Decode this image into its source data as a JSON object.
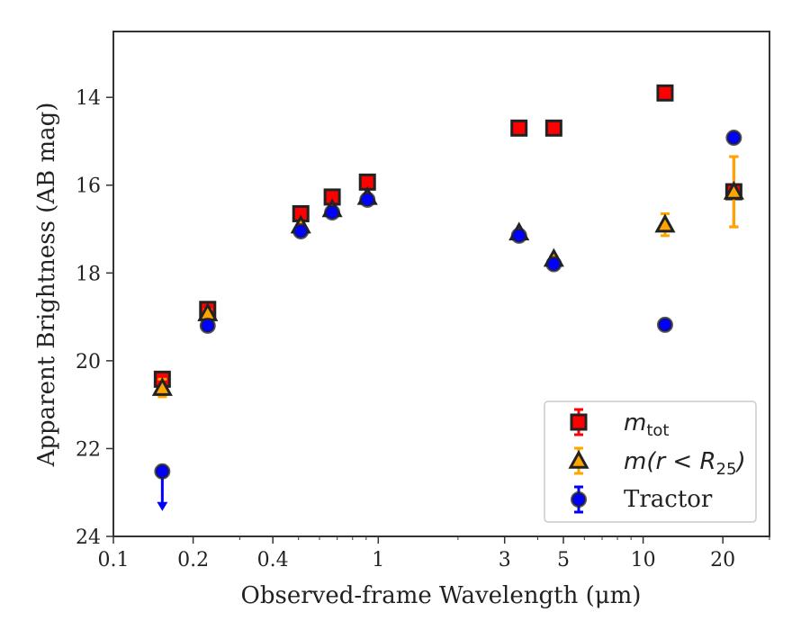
{
  "chart_data": {
    "type": "scatter",
    "title": "",
    "xlabel": "Observed-frame Wavelength (μm)",
    "ylabel": "Apparent Brightness (AB mag)",
    "xscale": "log",
    "yscale": "linear",
    "y_inverted": true,
    "xlim": [
      0.1,
      30
    ],
    "ylim": [
      24,
      12.5
    ],
    "x_ticks": [
      {
        "value": 0.1,
        "label": "0.1"
      },
      {
        "value": 0.2,
        "label": "0.2"
      },
      {
        "value": 0.4,
        "label": "0.4"
      },
      {
        "value": 1,
        "label": "1"
      },
      {
        "value": 3,
        "label": "3"
      },
      {
        "value": 5,
        "label": "5"
      },
      {
        "value": 10,
        "label": "10"
      },
      {
        "value": 20,
        "label": "20"
      }
    ],
    "y_ticks": [
      {
        "value": 14,
        "label": "14"
      },
      {
        "value": 16,
        "label": "16"
      },
      {
        "value": 18,
        "label": "18"
      },
      {
        "value": 20,
        "label": "20"
      },
      {
        "value": 22,
        "label": "22"
      },
      {
        "value": 24,
        "label": "24"
      }
    ],
    "grid": false,
    "legend_position": "bottom-right",
    "series": [
      {
        "name_main": "m",
        "name_sub": "tot",
        "marker": "square",
        "color": "#ff0000",
        "edge_color": "#222222",
        "errorbar_color": "#ff0000",
        "points": [
          {
            "x": 0.153,
            "y": 20.42,
            "yerr": 0.08
          },
          {
            "x": 0.227,
            "y": 18.83,
            "yerr": 0.06
          },
          {
            "x": 0.51,
            "y": 16.65,
            "yerr": 0.03
          },
          {
            "x": 0.67,
            "y": 16.27,
            "yerr": 0.03
          },
          {
            "x": 0.91,
            "y": 15.93,
            "yerr": 0.03
          },
          {
            "x": 3.4,
            "y": 14.7,
            "yerr": 0.02
          },
          {
            "x": 4.6,
            "y": 14.7,
            "yerr": 0.02
          },
          {
            "x": 12.1,
            "y": 13.9,
            "yerr": 0.02
          },
          {
            "x": 22.0,
            "y": 16.15,
            "yerr": 0.8
          }
        ]
      },
      {
        "name_main": "m(r < R",
        "name_sub": "25",
        "name_end": ")",
        "marker": "triangle",
        "color": "#ffa500",
        "edge_color": "#222222",
        "errorbar_color": "#ffa500",
        "points": [
          {
            "x": 0.153,
            "y": 20.62,
            "yerr": 0.2
          },
          {
            "x": 0.227,
            "y": 18.92,
            "yerr": 0.08
          },
          {
            "x": 0.51,
            "y": 16.92,
            "yerr": 0.05
          },
          {
            "x": 0.67,
            "y": 16.55,
            "yerr": 0.05
          },
          {
            "x": 0.91,
            "y": 16.27,
            "yerr": 0.05
          },
          {
            "x": 3.4,
            "y": 17.08,
            "yerr": 0.05
          },
          {
            "x": 4.6,
            "y": 17.68,
            "yerr": 0.05
          },
          {
            "x": 12.1,
            "y": 16.9,
            "yerr": 0.25
          },
          {
            "x": 22.0,
            "y": 16.15,
            "yerr": 0.8
          }
        ]
      },
      {
        "name_main": "Tractor",
        "marker": "circle",
        "color": "#0000ff",
        "edge_color": "#222222",
        "errorbar_color": "#0000ff",
        "points": [
          {
            "x": 0.153,
            "y": 22.52,
            "upper_limit": true
          },
          {
            "x": 0.227,
            "y": 19.2,
            "yerr": 0.06
          },
          {
            "x": 0.51,
            "y": 17.05,
            "yerr": 0.03
          },
          {
            "x": 0.67,
            "y": 16.62,
            "yerr": 0.03
          },
          {
            "x": 0.91,
            "y": 16.33,
            "yerr": 0.03
          },
          {
            "x": 3.4,
            "y": 17.15,
            "yerr": 0.03
          },
          {
            "x": 4.6,
            "y": 17.8,
            "yerr": 0.03
          },
          {
            "x": 12.1,
            "y": 19.18,
            "yerr": 0.06
          },
          {
            "x": 22.0,
            "y": 14.92,
            "yerr": 0.06
          }
        ]
      }
    ]
  }
}
